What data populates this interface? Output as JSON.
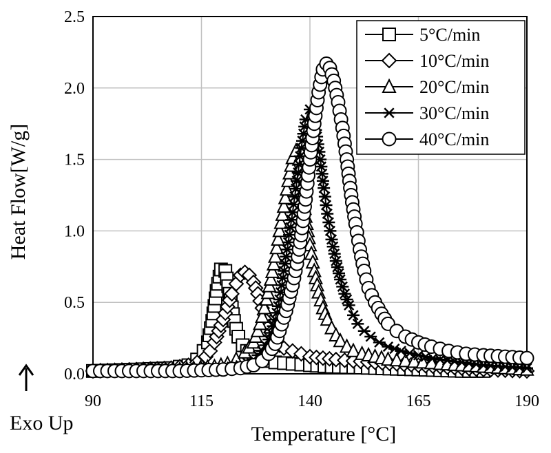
{
  "chart_data": {
    "type": "line",
    "title": "",
    "xlabel": "Temperature [°C]",
    "ylabel": "Heat Flow[W/g]",
    "xlim": [
      90,
      190
    ],
    "ylim": [
      0,
      2.5
    ],
    "x_ticks": [
      "90",
      "115",
      "140",
      "165",
      "190"
    ],
    "y_ticks": [
      "0.0",
      "0.5",
      "1.0",
      "1.5",
      "2.0",
      "2.5"
    ],
    "grid": true,
    "legend_position": "top-right",
    "annotation": "Exo Up",
    "series": [
      {
        "name": "5°C/min",
        "marker": "square",
        "points": [
          [
            90,
            0.02
          ],
          [
            100,
            0.03
          ],
          [
            108,
            0.04
          ],
          [
            112,
            0.06
          ],
          [
            114,
            0.1
          ],
          [
            115.5,
            0.16
          ],
          [
            116.5,
            0.22
          ],
          [
            117.5,
            0.37
          ],
          [
            118.5,
            0.58
          ],
          [
            119.5,
            0.73
          ],
          [
            120.5,
            0.72
          ],
          [
            121.5,
            0.56
          ],
          [
            122.5,
            0.37
          ],
          [
            123.5,
            0.26
          ],
          [
            124.5,
            0.2
          ],
          [
            125.5,
            0.16
          ],
          [
            127,
            0.12
          ],
          [
            129,
            0.1
          ],
          [
            132,
            0.08
          ],
          [
            136,
            0.07
          ],
          [
            140,
            0.06
          ],
          [
            145,
            0.05
          ],
          [
            150,
            0.045
          ],
          [
            155,
            0.04
          ],
          [
            160,
            0.035
          ],
          [
            165,
            0.03
          ],
          [
            170,
            0.025
          ],
          [
            175,
            0.02
          ],
          [
            180,
            0.02
          ]
        ]
      },
      {
        "name": "10°C/min",
        "marker": "diamond",
        "points": [
          [
            90,
            0.02
          ],
          [
            100,
            0.03
          ],
          [
            108,
            0.04
          ],
          [
            112,
            0.06
          ],
          [
            114,
            0.08
          ],
          [
            116,
            0.12
          ],
          [
            117,
            0.16
          ],
          [
            118,
            0.22
          ],
          [
            119,
            0.3
          ],
          [
            120,
            0.38
          ],
          [
            121,
            0.47
          ],
          [
            122,
            0.56
          ],
          [
            123,
            0.63
          ],
          [
            124,
            0.69
          ],
          [
            125,
            0.71
          ],
          [
            126,
            0.69
          ],
          [
            127,
            0.64
          ],
          [
            128,
            0.56
          ],
          [
            129,
            0.46
          ],
          [
            130,
            0.37
          ],
          [
            131,
            0.29
          ],
          [
            132,
            0.24
          ],
          [
            133,
            0.2
          ],
          [
            134,
            0.18
          ],
          [
            136,
            0.16
          ],
          [
            138,
            0.14
          ],
          [
            140,
            0.12
          ],
          [
            143,
            0.11
          ],
          [
            146,
            0.1
          ],
          [
            150,
            0.09
          ],
          [
            155,
            0.08
          ],
          [
            160,
            0.07
          ],
          [
            165,
            0.06
          ],
          [
            170,
            0.05
          ],
          [
            175,
            0.04
          ],
          [
            180,
            0.03
          ],
          [
            185,
            0.025
          ],
          [
            190,
            0.02
          ]
        ]
      },
      {
        "name": "20°C/min",
        "marker": "triangle",
        "points": [
          [
            90,
            0.02
          ],
          [
            100,
            0.02
          ],
          [
            110,
            0.03
          ],
          [
            118,
            0.05
          ],
          [
            121,
            0.07
          ],
          [
            123,
            0.1
          ],
          [
            125,
            0.15
          ],
          [
            127,
            0.22
          ],
          [
            128,
            0.3
          ],
          [
            129,
            0.4
          ],
          [
            130,
            0.52
          ],
          [
            131,
            0.66
          ],
          [
            132,
            0.82
          ],
          [
            133,
            1.0
          ],
          [
            134,
            1.17
          ],
          [
            135,
            1.35
          ],
          [
            136,
            1.51
          ],
          [
            136.8,
            1.56
          ],
          [
            137.5,
            1.5
          ],
          [
            138.2,
            1.32
          ],
          [
            139,
            1.1
          ],
          [
            140,
            0.9
          ],
          [
            141,
            0.72
          ],
          [
            142,
            0.57
          ],
          [
            143,
            0.46
          ],
          [
            144,
            0.38
          ],
          [
            145,
            0.32
          ],
          [
            146,
            0.27
          ],
          [
            147,
            0.23
          ],
          [
            148.5,
            0.19
          ],
          [
            150,
            0.16
          ],
          [
            152,
            0.14
          ],
          [
            155,
            0.12
          ],
          [
            158,
            0.1
          ],
          [
            162,
            0.09
          ],
          [
            166,
            0.08
          ],
          [
            170,
            0.07
          ],
          [
            175,
            0.06
          ],
          [
            180,
            0.05
          ],
          [
            185,
            0.04
          ],
          [
            190,
            0.03
          ]
        ]
      },
      {
        "name": "30°C/min",
        "marker": "star",
        "points": [
          [
            90,
            0.02
          ],
          [
            100,
            0.02
          ],
          [
            110,
            0.03
          ],
          [
            120,
            0.04
          ],
          [
            124,
            0.06
          ],
          [
            127,
            0.1
          ],
          [
            129,
            0.16
          ],
          [
            130.5,
            0.24
          ],
          [
            132,
            0.38
          ],
          [
            133,
            0.52
          ],
          [
            134,
            0.72
          ],
          [
            135,
            0.92
          ],
          [
            136,
            1.13
          ],
          [
            137,
            1.35
          ],
          [
            138,
            1.58
          ],
          [
            139,
            1.78
          ],
          [
            140,
            1.85
          ],
          [
            140.8,
            1.8
          ],
          [
            141.6,
            1.66
          ],
          [
            142.4,
            1.5
          ],
          [
            143.2,
            1.3
          ],
          [
            144,
            1.12
          ],
          [
            145,
            0.94
          ],
          [
            146,
            0.79
          ],
          [
            147,
            0.66
          ],
          [
            148,
            0.56
          ],
          [
            149,
            0.48
          ],
          [
            150,
            0.41
          ],
          [
            151,
            0.35
          ],
          [
            152.5,
            0.3
          ],
          [
            154,
            0.26
          ],
          [
            156,
            0.22
          ],
          [
            158,
            0.19
          ],
          [
            161,
            0.16
          ],
          [
            165,
            0.13
          ],
          [
            170,
            0.1
          ],
          [
            175,
            0.08
          ],
          [
            180,
            0.06
          ],
          [
            185,
            0.05
          ],
          [
            190,
            0.04
          ]
        ]
      },
      {
        "name": "40°C/min",
        "marker": "circle",
        "points": [
          [
            90,
            0.02
          ],
          [
            100,
            0.02
          ],
          [
            110,
            0.02
          ],
          [
            120,
            0.03
          ],
          [
            124,
            0.04
          ],
          [
            127,
            0.06
          ],
          [
            129,
            0.09
          ],
          [
            130.5,
            0.14
          ],
          [
            132,
            0.21
          ],
          [
            133,
            0.3
          ],
          [
            134.5,
            0.44
          ],
          [
            136,
            0.62
          ],
          [
            137,
            0.77
          ],
          [
            138,
            0.97
          ],
          [
            139,
            1.22
          ],
          [
            140,
            1.5
          ],
          [
            141,
            1.75
          ],
          [
            142,
            1.97
          ],
          [
            143,
            2.13
          ],
          [
            143.8,
            2.17
          ],
          [
            144.6,
            2.14
          ],
          [
            145.5,
            2.05
          ],
          [
            146.5,
            1.9
          ],
          [
            147.5,
            1.72
          ],
          [
            148.5,
            1.5
          ],
          [
            149.5,
            1.25
          ],
          [
            150.5,
            1.05
          ],
          [
            151.5,
            0.87
          ],
          [
            152.5,
            0.72
          ],
          [
            153.5,
            0.6
          ],
          [
            155,
            0.5
          ],
          [
            156.5,
            0.42
          ],
          [
            158,
            0.35
          ],
          [
            160,
            0.3
          ],
          [
            162,
            0.26
          ],
          [
            165,
            0.22
          ],
          [
            168,
            0.19
          ],
          [
            172,
            0.16
          ],
          [
            176,
            0.14
          ],
          [
            180,
            0.13
          ],
          [
            185,
            0.12
          ],
          [
            190,
            0.11
          ]
        ]
      }
    ]
  }
}
